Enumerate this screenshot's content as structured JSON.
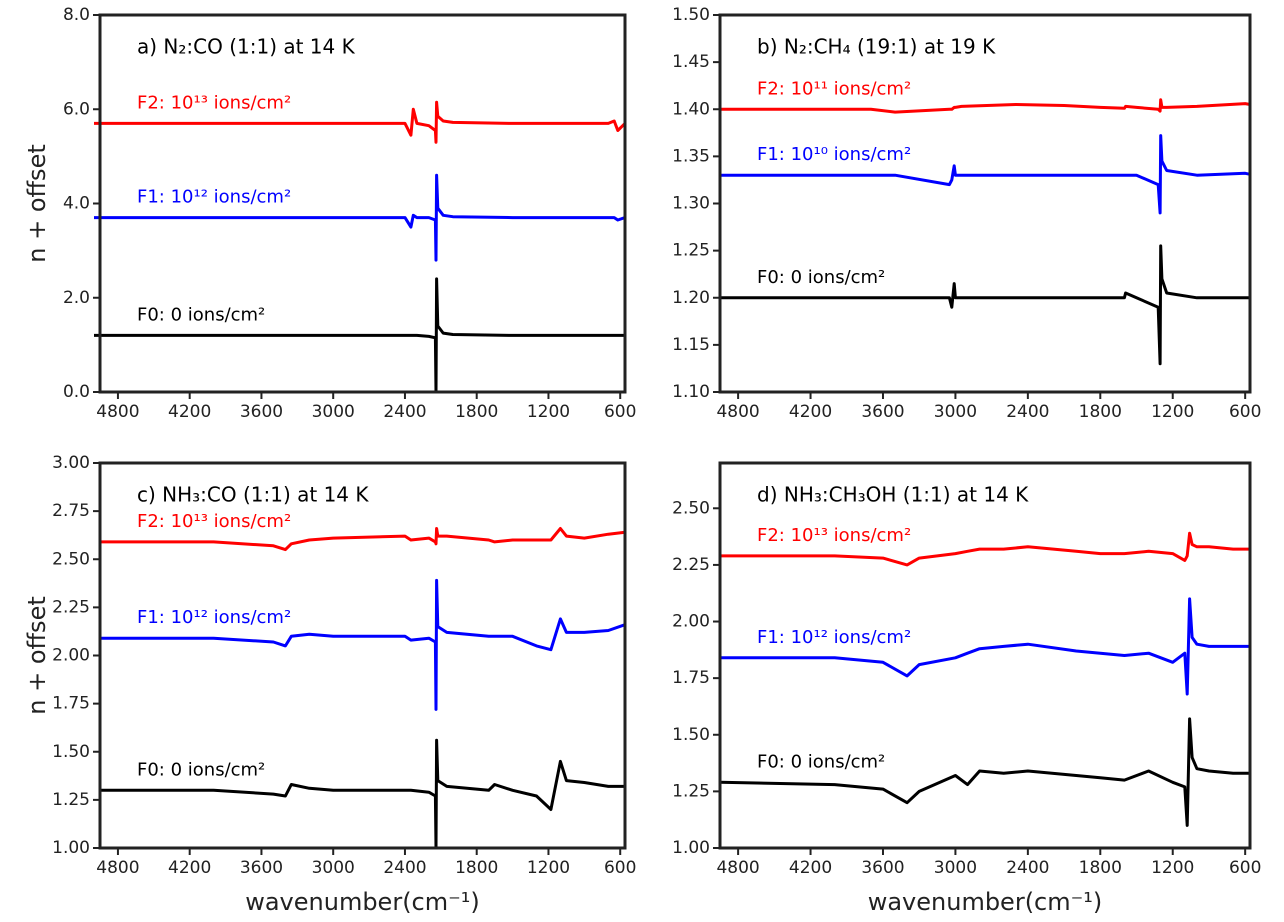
{
  "chart_data": [
    {
      "type": "line",
      "title": "a) N₂:CO (1:1) at 14 K",
      "ylabel": "n + offset",
      "x": [
        5000,
        4000,
        3000,
        2400,
        2350,
        2330,
        2300,
        2200,
        2145,
        2140,
        2135,
        2125,
        2080,
        2000,
        1500,
        1000,
        700,
        650,
        620,
        560
      ],
      "series": [
        {
          "name": "F0: 0 ions/cm²",
          "color": "#000000",
          "values": [
            1.2,
            1.2,
            1.2,
            1.2,
            1.2,
            1.2,
            1.2,
            1.18,
            1.15,
            0.0,
            2.4,
            1.4,
            1.25,
            1.22,
            1.2,
            1.2,
            1.2,
            1.2,
            1.2,
            1.2
          ]
        },
        {
          "name": "F1: 10¹² ions/cm²",
          "color": "#0000ff",
          "values": [
            3.7,
            3.7,
            3.7,
            3.7,
            3.5,
            3.75,
            3.7,
            3.7,
            3.65,
            2.8,
            4.6,
            3.9,
            3.75,
            3.72,
            3.7,
            3.7,
            3.7,
            3.7,
            3.65,
            3.7
          ]
        },
        {
          "name": "F2: 10¹³ ions/cm²",
          "color": "#ff0000",
          "values": [
            5.7,
            5.7,
            5.7,
            5.7,
            5.45,
            6.0,
            5.7,
            5.65,
            5.55,
            5.3,
            6.15,
            5.85,
            5.75,
            5.72,
            5.7,
            5.7,
            5.7,
            5.75,
            5.55,
            5.7
          ]
        }
      ],
      "xlim": [
        4950,
        560
      ],
      "xticks": [
        4800,
        4200,
        3600,
        3000,
        2400,
        1800,
        1200,
        600
      ],
      "ylim": [
        0,
        8
      ],
      "yticks": [
        {
          "value": 0,
          "label": "0.0"
        },
        {
          "value": 2,
          "label": "2.0"
        },
        {
          "value": 4,
          "label": "4.0"
        },
        {
          "value": 6,
          "label": "6.0"
        },
        {
          "value": 8,
          "label": "8.0"
        }
      ]
    },
    {
      "type": "line",
      "title": "b) N₂:CH₄ (19:1) at 19 K",
      "x": [
        4950,
        4000,
        3700,
        3500,
        3050,
        3030,
        3010,
        3000,
        2950,
        2500,
        2100,
        1800,
        1600,
        1590,
        1500,
        1320,
        1305,
        1300,
        1290,
        1250,
        1000,
        600,
        560
      ],
      "series": [
        {
          "name": "F0: 0 ions/cm²",
          "color": "#000000",
          "values": [
            1.2,
            1.2,
            1.2,
            1.2,
            1.2,
            1.19,
            1.215,
            1.2,
            1.2,
            1.2,
            1.2,
            1.2,
            1.2,
            1.205,
            1.2,
            1.19,
            1.13,
            1.255,
            1.22,
            1.205,
            1.2,
            1.2,
            1.2
          ]
        },
        {
          "name": "F1: 10¹⁰ ions/cm²",
          "color": "#0000ff",
          "values": [
            1.33,
            1.33,
            1.33,
            1.33,
            1.32,
            1.325,
            1.34,
            1.33,
            1.33,
            1.33,
            1.33,
            1.33,
            1.33,
            1.33,
            1.33,
            1.32,
            1.29,
            1.372,
            1.345,
            1.335,
            1.33,
            1.332,
            1.331
          ]
        },
        {
          "name": "F2: 10¹¹ ions/cm²",
          "color": "#ff0000",
          "values": [
            1.4,
            1.4,
            1.4,
            1.397,
            1.4,
            1.4,
            1.402,
            1.402,
            1.403,
            1.405,
            1.404,
            1.402,
            1.401,
            1.403,
            1.402,
            1.4,
            1.398,
            1.41,
            1.402,
            1.402,
            1.403,
            1.406,
            1.405
          ]
        }
      ],
      "xlim": [
        4950,
        560
      ],
      "xticks": [
        4800,
        4200,
        3600,
        3000,
        2400,
        1800,
        1200,
        600
      ],
      "ylim": [
        1.1,
        1.5
      ],
      "yticks": [
        {
          "value": 1.1,
          "label": "1.10"
        },
        1.15,
        {
          "value": 1.2,
          "label": "1.20"
        },
        1.25,
        {
          "value": 1.3,
          "label": "1.30"
        },
        1.35,
        {
          "value": 1.4,
          "label": "1.40"
        },
        1.45,
        {
          "value": 1.5,
          "label": "1.50"
        }
      ]
    },
    {
      "type": "line",
      "title": "c) NH₃:CO (1:1) at 14 K",
      "ylabel": "n + offset",
      "xlabel": "wavenumber(cm⁻¹)",
      "x": [
        4950,
        4000,
        3500,
        3400,
        3350,
        3200,
        3000,
        2400,
        2350,
        2200,
        2145,
        2140,
        2135,
        2125,
        2050,
        1700,
        1650,
        1500,
        1300,
        1180,
        1100,
        1050,
        900,
        700,
        560
      ],
      "series": [
        {
          "name": "F0: 0 ions/cm²",
          "color": "#000000",
          "values": [
            1.3,
            1.3,
            1.28,
            1.27,
            1.33,
            1.31,
            1.3,
            1.3,
            1.3,
            1.29,
            1.27,
            1.0,
            1.56,
            1.35,
            1.32,
            1.3,
            1.33,
            1.3,
            1.27,
            1.2,
            1.45,
            1.35,
            1.34,
            1.32,
            1.32
          ]
        },
        {
          "name": "F1: 10¹² ions/cm²",
          "color": "#0000ff",
          "values": [
            2.09,
            2.09,
            2.07,
            2.05,
            2.1,
            2.11,
            2.1,
            2.1,
            2.08,
            2.09,
            2.07,
            1.72,
            2.39,
            2.15,
            2.12,
            2.1,
            2.1,
            2.1,
            2.05,
            2.03,
            2.19,
            2.12,
            2.12,
            2.13,
            2.16
          ]
        },
        {
          "name": "F2: 10¹³ ions/cm²",
          "color": "#ff0000",
          "values": [
            2.59,
            2.59,
            2.57,
            2.55,
            2.58,
            2.6,
            2.61,
            2.62,
            2.6,
            2.61,
            2.59,
            2.58,
            2.66,
            2.62,
            2.62,
            2.6,
            2.59,
            2.6,
            2.6,
            2.6,
            2.66,
            2.62,
            2.61,
            2.63,
            2.64
          ]
        }
      ],
      "xlim": [
        4950,
        560
      ],
      "xticks": [
        4800,
        4200,
        3600,
        3000,
        2400,
        1800,
        1200,
        600
      ],
      "ylim": [
        1,
        3
      ],
      "yticks": [
        {
          "value": 1,
          "label": "1.00"
        },
        1.25,
        {
          "value": 1.5,
          "label": "1.50"
        },
        1.75,
        {
          "value": 2,
          "label": "2.00"
        },
        2.25,
        {
          "value": 2.5,
          "label": "2.50"
        },
        2.75,
        {
          "value": 3,
          "label": "3.00"
        }
      ]
    },
    {
      "type": "line",
      "title": "d) NH₃:CH₃OH (1:1) at 14 K",
      "xlabel": "wavenumber(cm⁻¹)",
      "x": [
        4950,
        4000,
        3600,
        3400,
        3300,
        3000,
        2900,
        2800,
        2600,
        2400,
        2000,
        1800,
        1600,
        1400,
        1200,
        1100,
        1080,
        1060,
        1040,
        1000,
        900,
        700,
        560
      ],
      "series": [
        {
          "name": "F0: 0 ions/cm²",
          "color": "#000000",
          "values": [
            1.29,
            1.28,
            1.26,
            1.2,
            1.25,
            1.32,
            1.28,
            1.34,
            1.33,
            1.34,
            1.32,
            1.31,
            1.3,
            1.34,
            1.29,
            1.27,
            1.1,
            1.57,
            1.4,
            1.35,
            1.34,
            1.33,
            1.33
          ]
        },
        {
          "name": "F1: 10¹² ions/cm²",
          "color": "#0000ff",
          "values": [
            1.84,
            1.84,
            1.82,
            1.76,
            1.81,
            1.84,
            1.86,
            1.88,
            1.89,
            1.9,
            1.87,
            1.86,
            1.85,
            1.86,
            1.82,
            1.86,
            1.68,
            2.1,
            1.93,
            1.9,
            1.89,
            1.89,
            1.89
          ]
        },
        {
          "name": "F2: 10¹³ ions/cm²",
          "color": "#ff0000",
          "values": [
            2.29,
            2.29,
            2.28,
            2.25,
            2.28,
            2.3,
            2.31,
            2.32,
            2.32,
            2.33,
            2.31,
            2.3,
            2.3,
            2.31,
            2.3,
            2.27,
            2.29,
            2.39,
            2.34,
            2.33,
            2.33,
            2.32,
            2.32
          ]
        }
      ],
      "xlim": [
        4950,
        560
      ],
      "xticks": [
        4800,
        4200,
        3600,
        3000,
        2400,
        1800,
        1200,
        600
      ],
      "ylim": [
        1,
        2.7
      ],
      "yticks": [
        {
          "value": 1,
          "label": "1.00"
        },
        1.25,
        {
          "value": 1.5,
          "label": "1.50"
        },
        1.75,
        {
          "value": 2,
          "label": "2.00"
        },
        2.25,
        {
          "value": 2.5,
          "label": "2.50"
        }
      ]
    }
  ]
}
